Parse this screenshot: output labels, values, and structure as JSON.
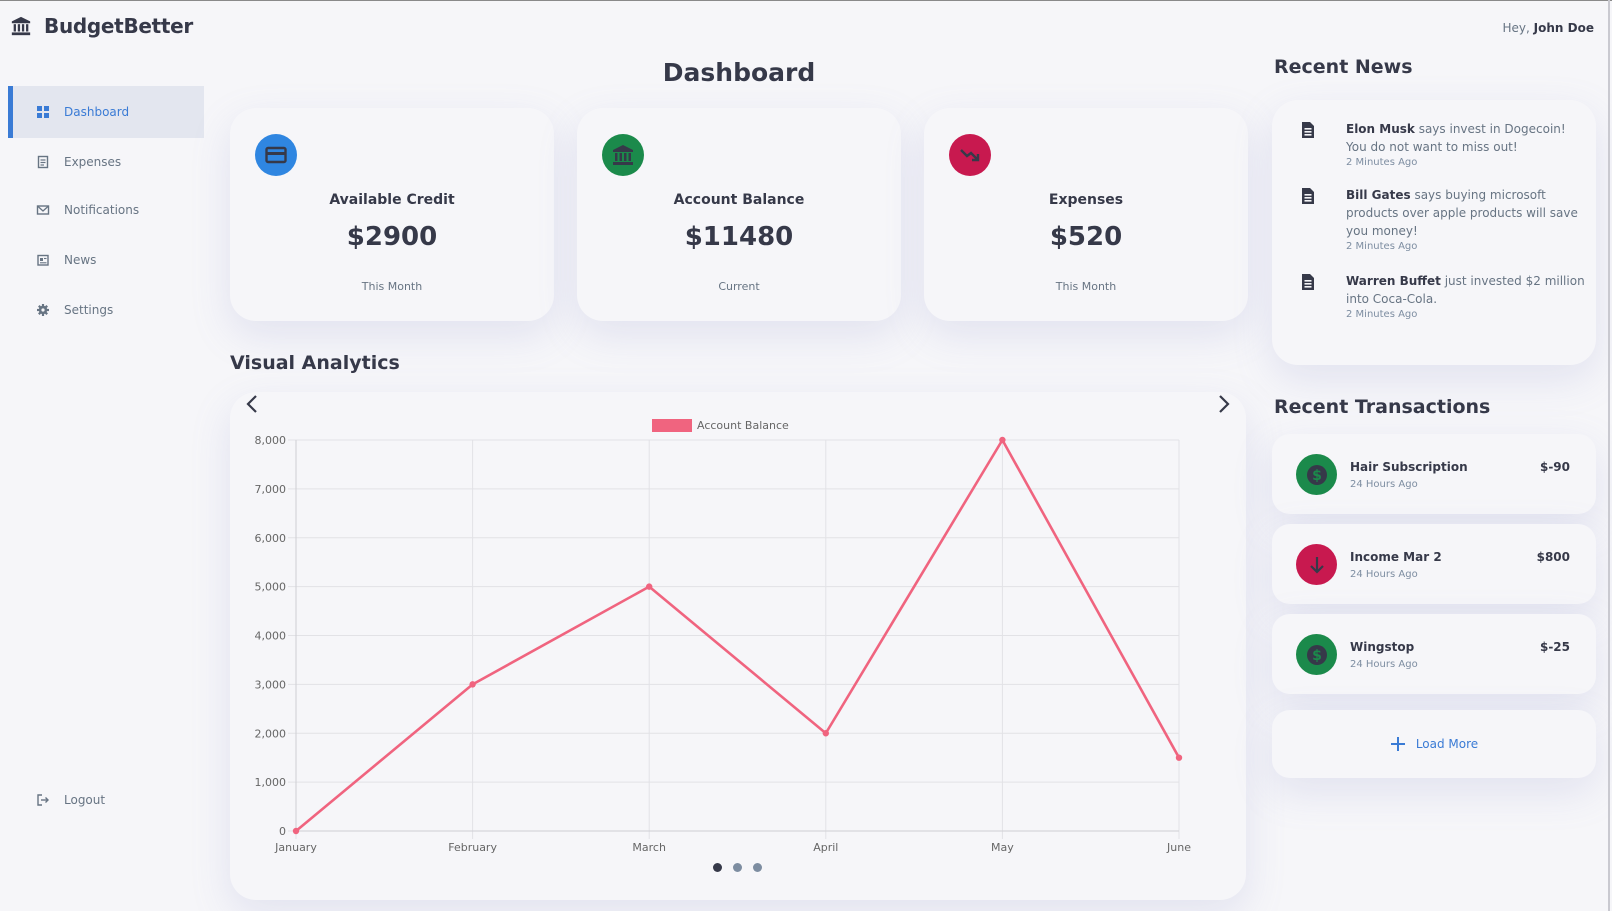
{
  "brand": {
    "name": "BudgetBetter",
    "icon": "bank-icon"
  },
  "header": {
    "greeting_prefix": "Hey,",
    "user_name": "John Doe"
  },
  "sidebar": {
    "items": [
      {
        "label": "Dashboard",
        "icon": "grid-icon",
        "active": true
      },
      {
        "label": "Expenses",
        "icon": "receipt-icon",
        "active": false
      },
      {
        "label": "Notifications",
        "icon": "mail-icon",
        "active": false
      },
      {
        "label": "News",
        "icon": "newspaper-icon",
        "active": false
      },
      {
        "label": "Settings",
        "icon": "gear-icon",
        "active": false
      }
    ],
    "logout_label": "Logout"
  },
  "main": {
    "title": "Dashboard",
    "cards": [
      {
        "label": "Available Credit",
        "value": "$2900",
        "sub": "This Month",
        "icon": "credit-card-icon",
        "color": "#2f86e1"
      },
      {
        "label": "Account Balance",
        "value": "$11480",
        "sub": "Current",
        "icon": "bank-icon",
        "color": "#1b8a4b"
      },
      {
        "label": "Expenses",
        "value": "$520",
        "sub": "This Month",
        "icon": "trending-down-icon",
        "color": "#c8194f"
      }
    ],
    "analytics_title": "Visual Analytics"
  },
  "chart_data": {
    "type": "line",
    "categories": [
      "January",
      "February",
      "March",
      "April",
      "May",
      "June"
    ],
    "series": [
      {
        "name": "Account Balance",
        "values": [
          0,
          3000,
          5000,
          2000,
          8000,
          1500
        ],
        "color": "#f0647f"
      }
    ],
    "ylim": [
      0,
      8000
    ],
    "yticks": [
      "0",
      "1,000",
      "2,000",
      "3,000",
      "4,000",
      "5,000",
      "6,000",
      "7,000",
      "8,000"
    ],
    "legend_position": "top",
    "grid": true
  },
  "news": {
    "title": "Recent News",
    "items": [
      {
        "bold": "Elon Musk",
        "text": " says invest in Dogecoin! You do not want to miss out!",
        "time": "2 Minutes Ago"
      },
      {
        "bold": "Bill Gates",
        "text": " says buying microsoft products over apple products will save you money!",
        "time": "2 Minutes Ago"
      },
      {
        "bold": "Warren Buffet",
        "text": " just invested $2 million into Coca-Cola.",
        "time": "2 Minutes Ago"
      }
    ]
  },
  "transactions": {
    "title": "Recent Transactions",
    "items": [
      {
        "name": "Hair Subscription",
        "time": "24 Hours Ago",
        "amount": "$-90",
        "icon": "dollar-icon",
        "color": "#1b8a4b"
      },
      {
        "name": "Income Mar 2",
        "time": "24 Hours Ago",
        "amount": "$800",
        "icon": "arrow-down-icon",
        "color": "#c8194f"
      },
      {
        "name": "Wingstop",
        "time": "24 Hours Ago",
        "amount": "$-25",
        "icon": "dollar-icon",
        "color": "#1b8a4b"
      }
    ],
    "load_more_label": "Load More"
  }
}
